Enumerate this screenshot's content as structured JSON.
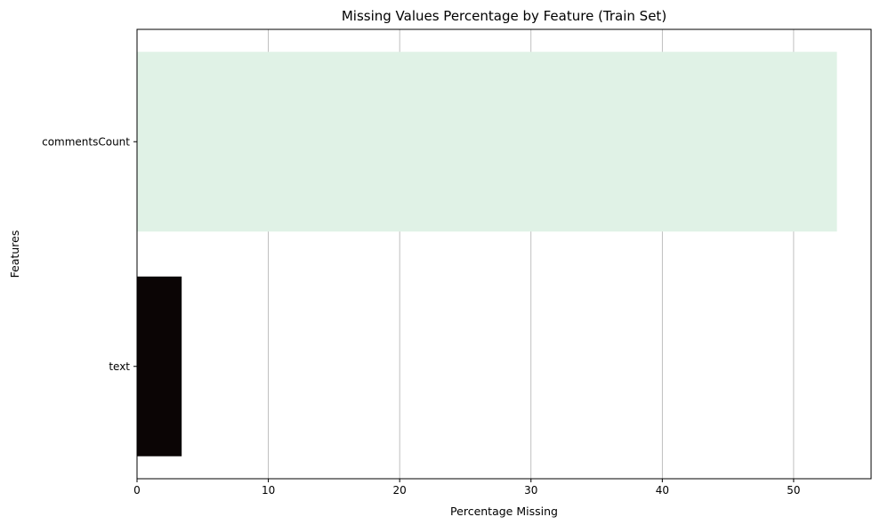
{
  "chart_data": {
    "type": "bar",
    "orientation": "horizontal",
    "title": "Missing Values Percentage by Feature (Train Set)",
    "xlabel": "Percentage Missing",
    "ylabel": "Features",
    "categories": [
      "commentsCount",
      "text"
    ],
    "values": [
      53.3,
      3.4
    ],
    "bar_colors": [
      "#e0f2e6",
      "#0b0505"
    ],
    "xlim": [
      0,
      55.9
    ],
    "xticks": [
      0,
      10,
      20,
      30,
      40,
      50
    ],
    "grid": "x"
  }
}
